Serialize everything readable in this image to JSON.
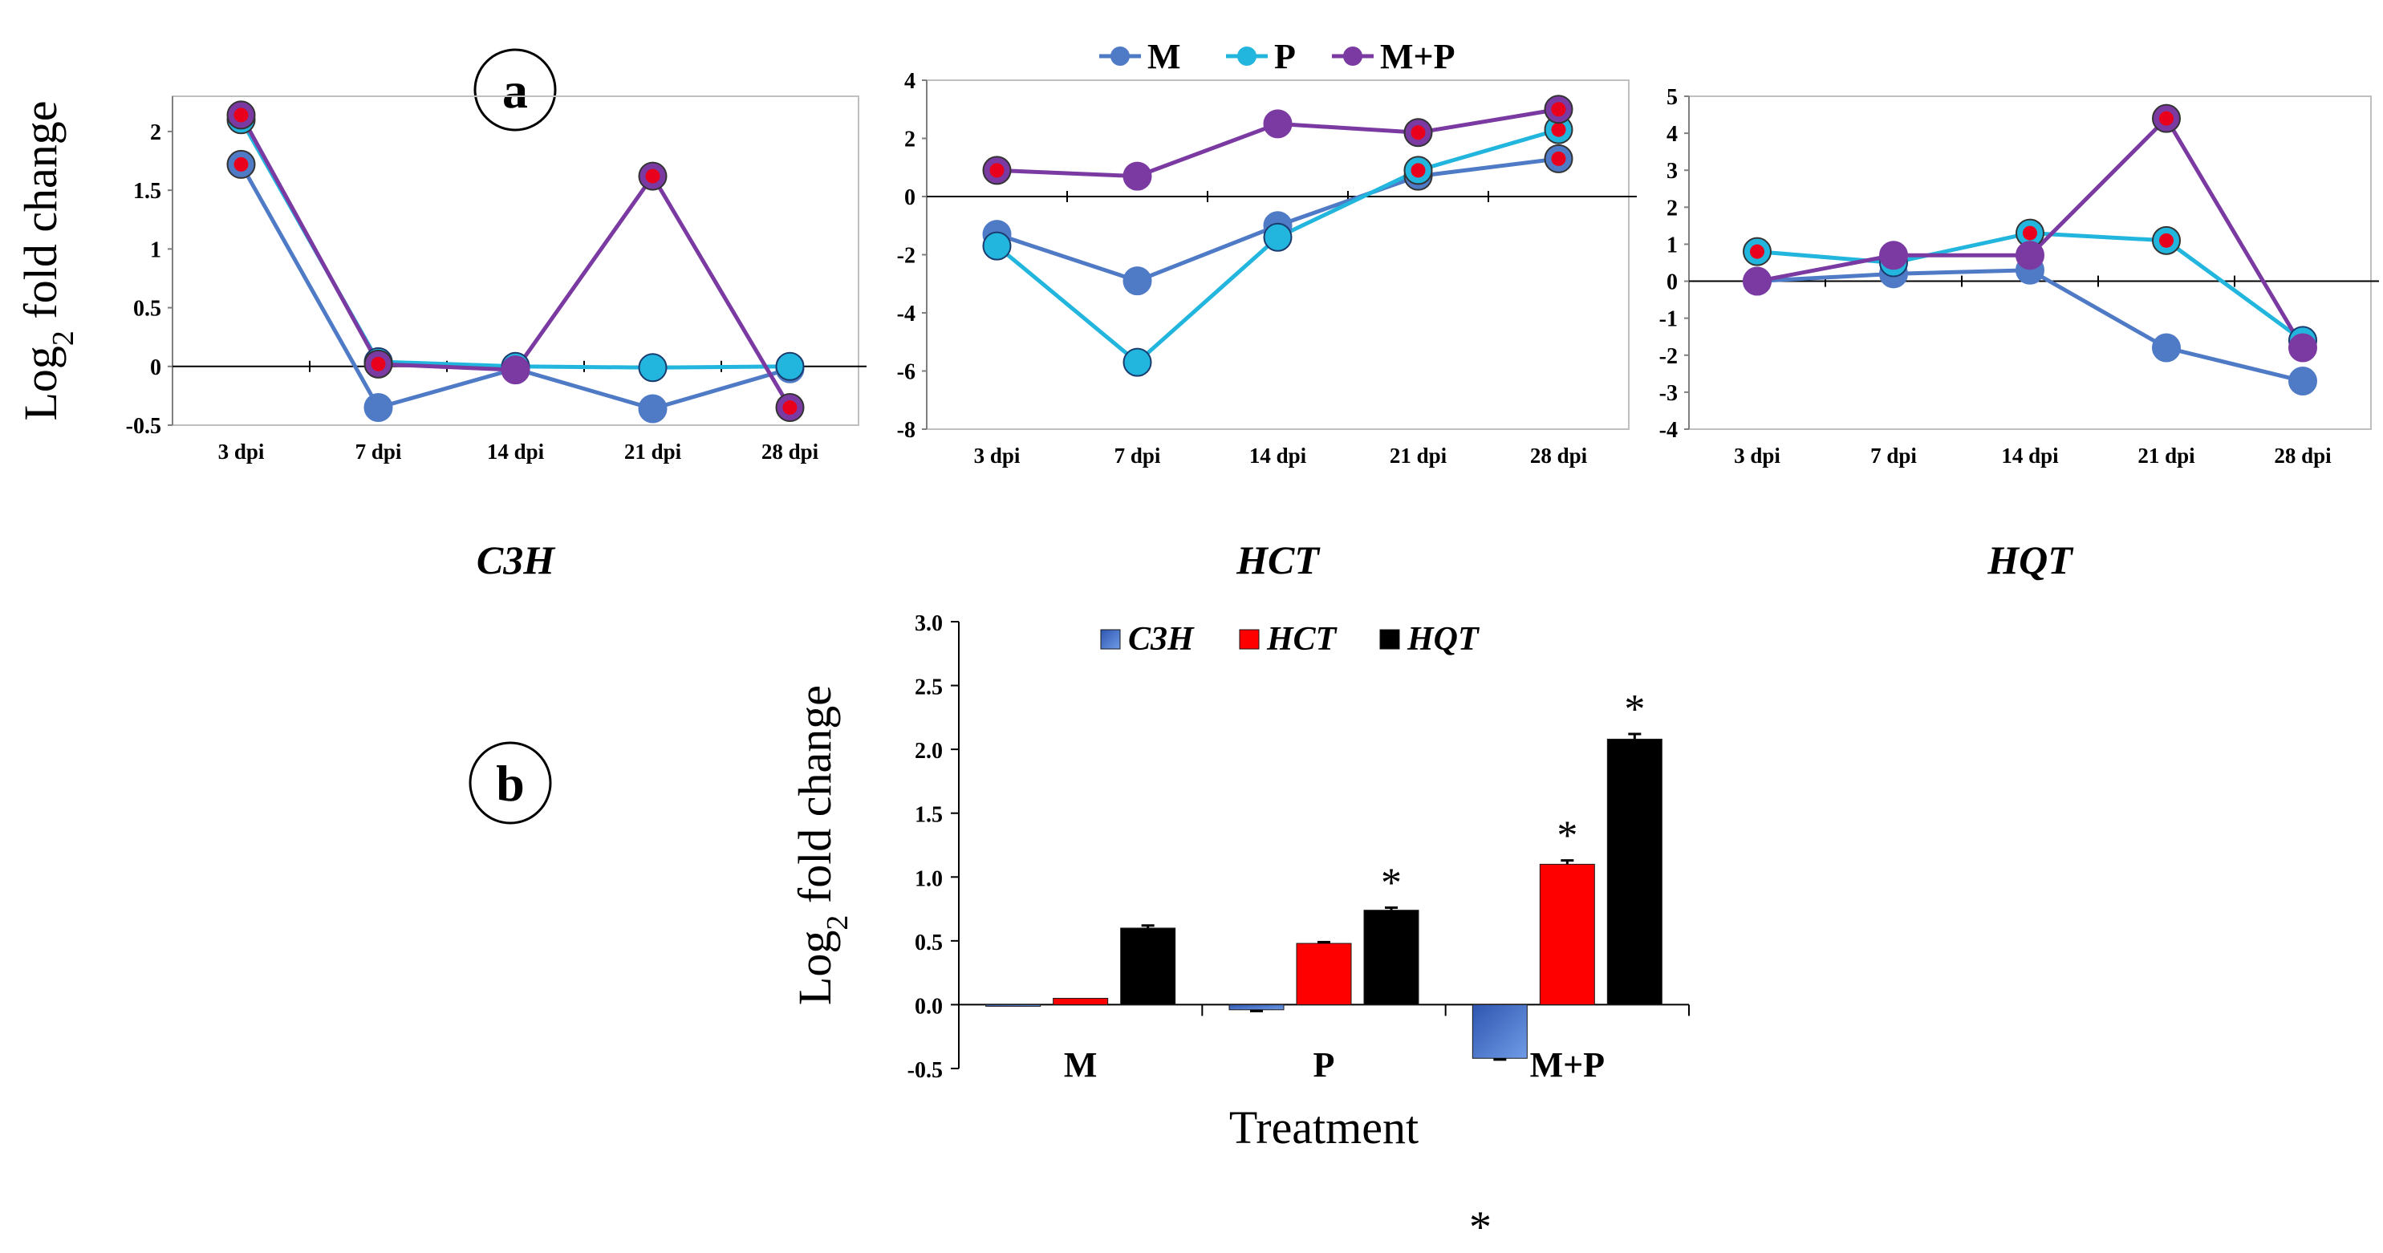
{
  "figure": {
    "panel_a_label": "a",
    "panel_b_label": "b",
    "stray_mark": "*"
  },
  "legend_a": {
    "items": [
      {
        "name": "M",
        "color": "#4f7ac6"
      },
      {
        "name": "P",
        "color": "#22b5dd"
      },
      {
        "name": "M+P",
        "color": "#7a3aa1"
      }
    ]
  },
  "chart_data": [
    {
      "type": "line",
      "panel": "a",
      "title": "C3H",
      "ylabel": "Log2 fold change",
      "x": [
        "3 dpi",
        "7 dpi",
        "14 dpi",
        "21 dpi",
        "28 dpi"
      ],
      "ylim": [
        -0.5,
        2.3
      ],
      "yticks": [
        -0.5,
        0,
        0.5,
        1,
        1.5,
        2
      ],
      "ytick_labels": [
        "-0.5",
        "0",
        "0.5",
        "1",
        "1.5",
        "2"
      ],
      "series": [
        {
          "name": "M",
          "values": [
            1.72,
            -0.35,
            -0.02,
            -0.36,
            -0.02
          ],
          "significant": [
            true,
            false,
            false,
            false,
            false
          ]
        },
        {
          "name": "P",
          "values": [
            2.1,
            0.04,
            0.0,
            -0.01,
            0.0
          ],
          "significant": [
            true,
            false,
            false,
            false,
            false
          ]
        },
        {
          "name": "M+P",
          "values": [
            2.14,
            0.02,
            -0.03,
            1.62,
            -0.35
          ],
          "significant": [
            true,
            true,
            false,
            true,
            true
          ]
        }
      ]
    },
    {
      "type": "line",
      "panel": "a",
      "title": "HCT",
      "ylabel": "",
      "x": [
        "3 dpi",
        "7 dpi",
        "14 dpi",
        "21 dpi",
        "28 dpi"
      ],
      "ylim": [
        -8,
        4
      ],
      "yticks": [
        -8,
        -6,
        -4,
        -2,
        0,
        2,
        4
      ],
      "ytick_labels": [
        "-8",
        "-6",
        "-4",
        "-2",
        "0",
        "2",
        "4"
      ],
      "series": [
        {
          "name": "M",
          "values": [
            -1.3,
            -2.9,
            -1.0,
            0.7,
            1.3
          ],
          "significant": [
            false,
            false,
            false,
            true,
            true
          ]
        },
        {
          "name": "P",
          "values": [
            -1.7,
            -5.7,
            -1.4,
            0.9,
            2.3
          ],
          "significant": [
            false,
            false,
            false,
            true,
            true
          ]
        },
        {
          "name": "M+P",
          "values": [
            0.9,
            0.7,
            2.5,
            2.2,
            3.0
          ],
          "significant": [
            true,
            false,
            false,
            true,
            true
          ]
        }
      ]
    },
    {
      "type": "line",
      "panel": "a",
      "title": "HQT",
      "ylabel": "",
      "x": [
        "3 dpi",
        "7 dpi",
        "14 dpi",
        "21 dpi",
        "28 dpi"
      ],
      "ylim": [
        -4,
        5
      ],
      "yticks": [
        -4,
        -3,
        -2,
        -1,
        0,
        1,
        2,
        3,
        4,
        5
      ],
      "ytick_labels": [
        "-4",
        "-3",
        "-2",
        "-1",
        "0",
        "1",
        "2",
        "3",
        "4",
        "5"
      ],
      "series": [
        {
          "name": "M",
          "values": [
            0.0,
            0.2,
            0.3,
            -1.8,
            -2.7
          ],
          "significant": [
            false,
            false,
            false,
            false,
            false
          ]
        },
        {
          "name": "P",
          "values": [
            0.8,
            0.5,
            1.3,
            1.1,
            -1.6
          ],
          "significant": [
            true,
            false,
            true,
            true,
            false
          ]
        },
        {
          "name": "M+P",
          "values": [
            0.0,
            0.7,
            0.7,
            4.4,
            -1.8
          ],
          "significant": [
            false,
            false,
            false,
            true,
            false
          ]
        }
      ]
    },
    {
      "type": "bar",
      "panel": "b",
      "title": "",
      "xlabel": "Treatment",
      "ylabel": "Log2 fold change",
      "categories": [
        "M",
        "P",
        "M+P"
      ],
      "ylim": [
        -0.5,
        3.0
      ],
      "yticks": [
        -0.5,
        0.0,
        0.5,
        1.0,
        1.5,
        2.0,
        2.5,
        3.0
      ],
      "ytick_labels": [
        "-0.5",
        "0.0",
        "0.5",
        "1.0",
        "1.5",
        "2.0",
        "2.5",
        "3.0"
      ],
      "series": [
        {
          "name": "C3H",
          "color": "#4472c4",
          "values": [
            0.0,
            -0.04,
            -0.42
          ],
          "errors": [
            0.0,
            0.01,
            0.01
          ],
          "significant": [
            false,
            false,
            false
          ]
        },
        {
          "name": "HCT",
          "color": "#ff0000",
          "values": [
            0.05,
            0.48,
            1.1
          ],
          "errors": [
            0.0,
            0.01,
            0.03
          ],
          "significant": [
            false,
            false,
            true
          ]
        },
        {
          "name": "HQT",
          "color": "#000000",
          "values": [
            0.6,
            0.74,
            2.08
          ],
          "errors": [
            0.02,
            0.02,
            0.04
          ],
          "significant": [
            false,
            true,
            true
          ]
        }
      ],
      "significance_mark": "*"
    }
  ]
}
